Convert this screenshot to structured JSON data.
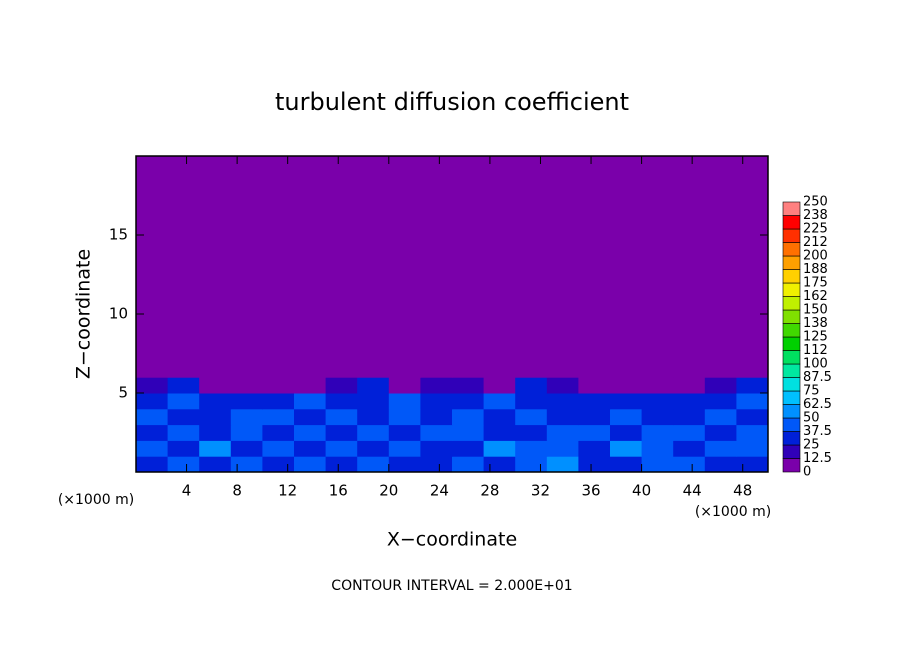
{
  "chart_data": {
    "type": "heatmap",
    "title": "turbulent diffusion coefficient",
    "x_label": "X−coordinate",
    "y_label": "Z−coordinate",
    "x_unit": "(×1000 m)",
    "y_unit": "(×1000 m)",
    "footer": "CONTOUR INTERVAL = 2.000E+01",
    "xlim": [
      0,
      50
    ],
    "ylim": [
      0,
      20
    ],
    "xticks": [
      4,
      8,
      12,
      16,
      20,
      24,
      28,
      32,
      36,
      40,
      44,
      48
    ],
    "yticks": [
      5,
      10,
      15
    ],
    "x_edges": [
      0,
      2.5,
      5,
      7.5,
      10,
      12.5,
      15,
      17.5,
      20,
      22.5,
      25,
      27.5,
      30,
      32.5,
      35,
      37.5,
      40,
      42.5,
      45,
      47.5,
      50
    ],
    "y_edges": [
      0,
      1,
      2,
      3,
      4,
      5,
      6,
      20
    ],
    "values": [
      [
        30,
        45,
        30,
        40,
        35,
        45,
        30,
        40,
        30,
        35,
        45,
        30,
        40,
        50,
        35,
        30,
        45,
        40,
        35,
        30
      ],
      [
        40,
        30,
        50,
        35,
        40,
        30,
        45,
        35,
        40,
        30,
        35,
        50,
        40,
        45,
        30,
        55,
        40,
        35,
        45,
        40
      ],
      [
        35,
        40,
        35,
        45,
        30,
        40,
        35,
        45,
        30,
        40,
        45,
        35,
        30,
        40,
        45,
        35,
        40,
        45,
        35,
        40
      ],
      [
        40,
        35,
        30,
        40,
        45,
        35,
        40,
        30,
        45,
        35,
        40,
        30,
        40,
        35,
        30,
        40,
        35,
        30,
        40,
        35
      ],
      [
        30,
        40,
        35,
        30,
        35,
        45,
        30,
        35,
        40,
        30,
        35,
        40,
        35,
        30,
        35,
        30,
        30,
        35,
        30,
        40
      ],
      [
        20,
        25,
        5,
        5,
        10,
        5,
        20,
        25,
        10,
        15,
        20,
        5,
        25,
        20,
        5,
        5,
        5,
        10,
        20,
        25
      ],
      [
        0,
        0,
        0,
        0,
        0,
        0,
        0,
        0,
        0,
        0,
        0,
        0,
        0,
        0,
        0,
        0,
        0,
        0,
        0,
        0
      ]
    ],
    "levels": [
      0,
      12.5,
      25,
      37.5,
      50,
      62.5,
      75,
      87.5,
      100,
      {
        "value": 112.5,
        "label": "112"
      },
      125,
      {
        "value": 137.5,
        "label": "138"
      },
      150,
      {
        "value": 162.5,
        "label": "162"
      },
      175,
      {
        "value": 187.5,
        "label": "188"
      },
      200,
      {
        "value": 212.5,
        "label": "212"
      },
      225,
      {
        "value": 237.5,
        "label": "238"
      },
      250
    ],
    "colors": [
      "#7a00aa",
      "#3000b8",
      "#0020d8",
      "#0058f8",
      "#0090ff",
      "#00c0ff",
      "#00e0e0",
      "#00e8a0",
      "#00e060",
      "#00d000",
      "#40d800",
      "#80e000",
      "#c0f000",
      "#f0f000",
      "#ffd000",
      "#ffa000",
      "#ff7000",
      "#ff3000",
      "#ff0000",
      "#ff8080"
    ]
  }
}
